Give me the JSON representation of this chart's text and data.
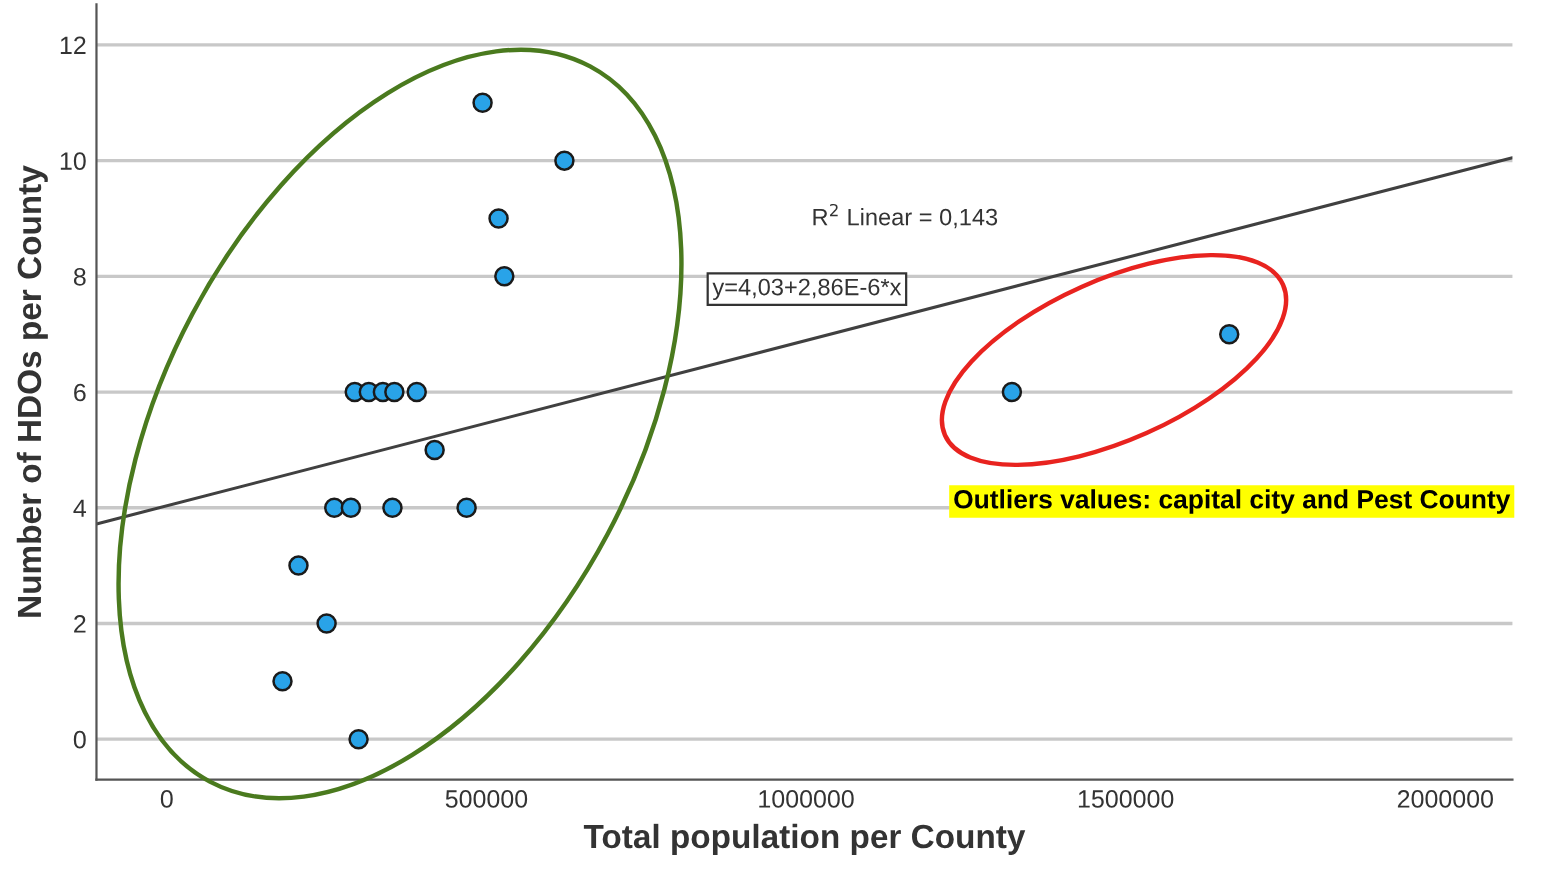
{
  "chart_data": {
    "type": "scatter",
    "xlabel": "Total population per County",
    "ylabel": "Number of HDOs per County",
    "xlim": [
      -110000,
      2105000
    ],
    "ylim": [
      -0.7,
      12.7
    ],
    "xticks": [
      0,
      500000,
      1000000,
      1500000,
      2000000
    ],
    "yticks": [
      0,
      2,
      4,
      6,
      8,
      10,
      12
    ],
    "grid": "y",
    "legend": false,
    "series": [
      {
        "marker": "circle",
        "color": "#29a3e8",
        "x": [
          494000,
          622000,
          519000,
          528000,
          294000,
          316000,
          338000,
          356000,
          391000,
          419000,
          262000,
          288000,
          353000,
          469000,
          206000,
          250000,
          181000,
          300000,
          1322000,
          1662000
        ],
        "values": [
          11,
          10,
          9,
          8,
          6,
          6,
          6,
          6,
          6,
          5,
          4,
          4,
          4,
          4,
          3,
          2,
          1,
          0,
          6,
          7
        ]
      },
      {
        "type": "line",
        "marker": "none",
        "color": "#404040",
        "x": [
          -110000,
          2105000
        ],
        "values": [
          3.72,
          10.05
        ]
      }
    ],
    "annotations": [
      "R$^{2}$ Linear = 0,143",
      "y=4,03+2,86E-6*x",
      "Outliers values: capital city and Pest County"
    ]
  }
}
